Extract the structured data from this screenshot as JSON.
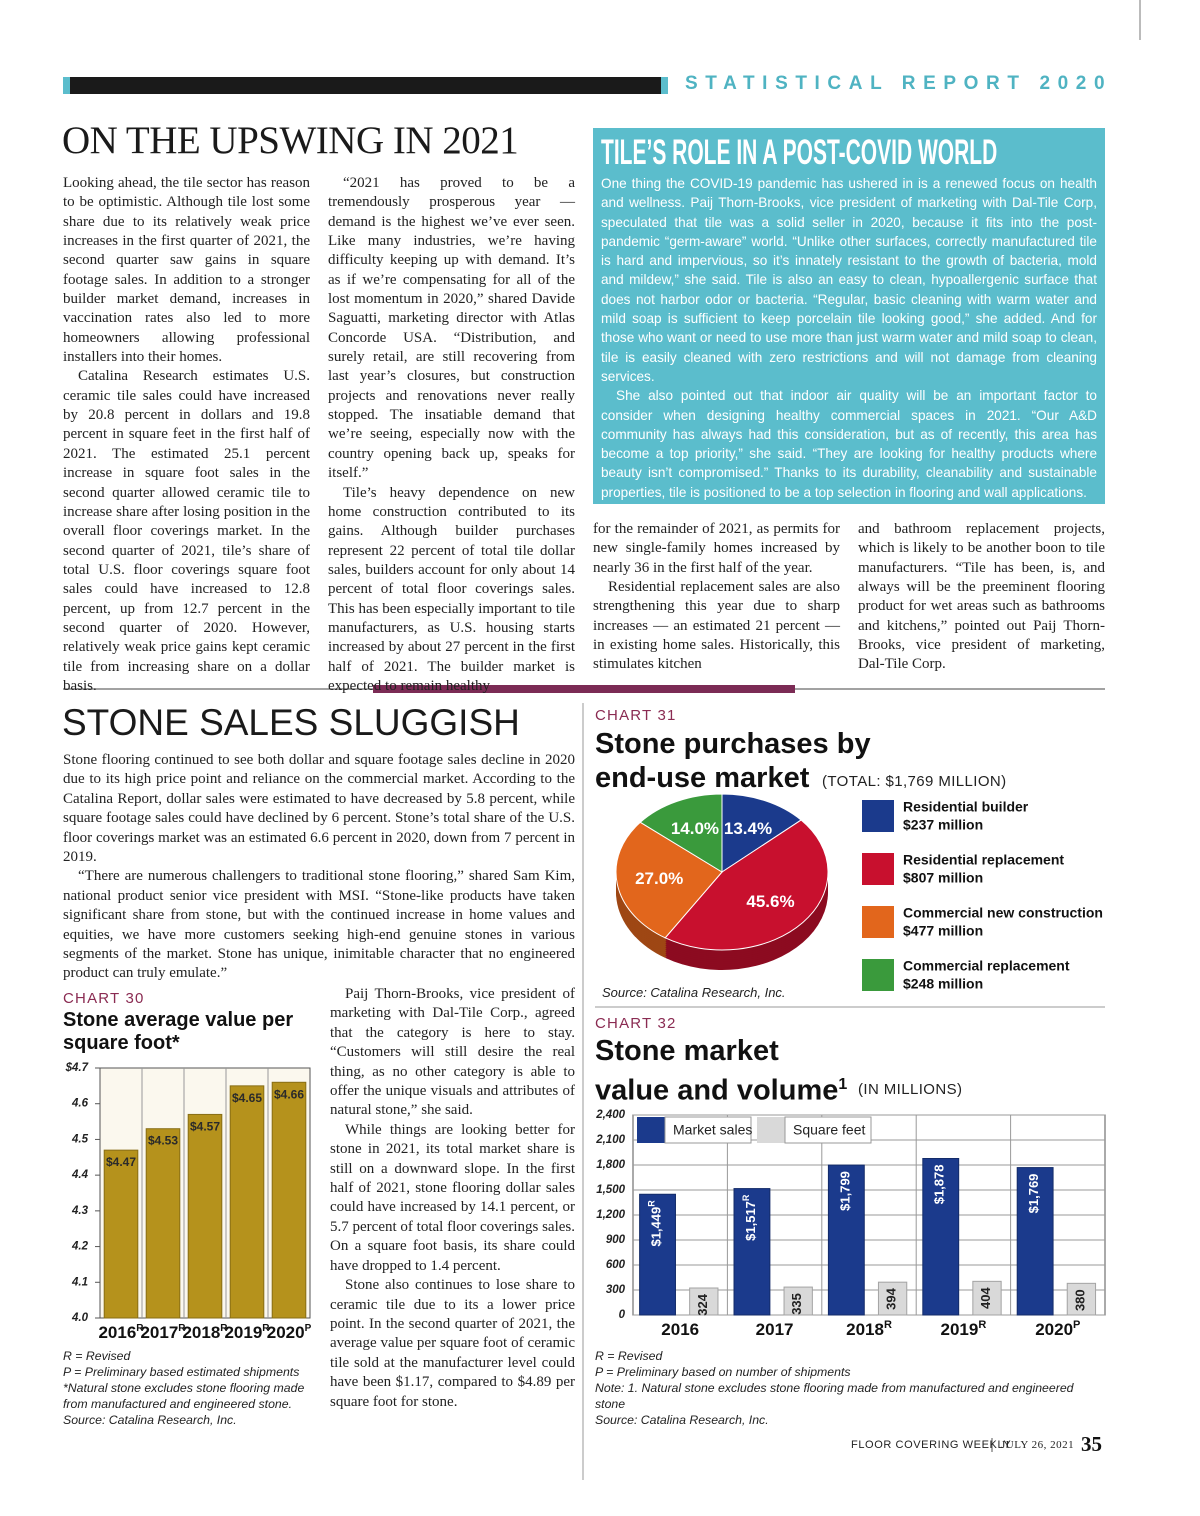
{
  "header": {
    "section": "STATISTICAL REPORT 2020"
  },
  "article1": {
    "title": "ON THE UPSWING IN 2021",
    "columns": [
      [
        "Looking ahead, the tile sector has reason to be optimistic. Although tile lost some share due to its relatively weak price increases in the first quarter of 2021, the second quarter saw gains in square footage sales. In addition to a stronger builder market demand, increases in vaccination rates also led to more homeowners allowing professional installers into their homes.",
        "Catalina Research estimates U.S. ceramic tile sales could have increased by 20.8 percent in dollars and 19.8 percent in square feet in the first half of 2021. The estimated 25.1 percent increase in square foot sales in the second quarter allowed ceramic tile to increase share after losing position in the overall floor coverings market. In the second quarter of 2021, tile’s share of total U.S. floor coverings square foot sales could have increased to 12.8 percent, up from 12.7 percent in the second quarter of 2020. However, relatively weak price gains kept ceramic tile from increasing share on a dollar basis."
      ],
      [
        "“2021 has proved to be a tremendously prosperous year — demand is the highest we’ve ever seen. Like many industries, we’re having difficulty keeping up with demand. It’s as if we’re compensating for all of the lost momentum in 2020,” shared Davide Saguatti, marketing director with Atlas Concorde USA. “Distribution, and surely retail, are still recovering from last year’s closures, but construction projects and renovations never really stopped. The insatiable demand that we’re seeing, especially now with the country opening back up, speaks for itself.”",
        "Tile’s heavy dependence on new home construction contributed to its gains. Although builder purchases represent 22 percent of total tile dollar sales, builders account for only about 14 percent of total floor coverings sales. This has been especially important to tile manufacturers, as U.S. housing starts increased by about 27 percent in the first half of 2021. The builder market is expected to remain healthy"
      ],
      [
        "for the remainder of 2021, as permits for new single-family homes increased by nearly 36 in the first half of the year.",
        "Residential replacement sales are also strengthening this year due to sharp increases — an estimated 21 percent — in existing home sales. Historically, this stimulates kitchen"
      ],
      [
        "and bathroom replacement projects, which is likely to be another boon to tile manufacturers. “Tile has been, is, and always will be the preeminent flooring product for wet areas such as bathrooms and kitchens,” pointed out Paij Thorn-Brooks, vice president of marketing, Dal-Tile Corp."
      ]
    ]
  },
  "sidebar": {
    "title": "TILE’S ROLE IN A POST-COVID WORLD",
    "paragraphs": [
      "One thing the COVID-19 pandemic has ushered in is a renewed focus on health and wellness. Paij Thorn-Brooks, vice president of marketing with Dal-Tile Corp, speculated that tile was a solid seller in 2020, because it fits into the post-pandemic “germ-aware” world. “Unlike other surfaces, correctly manufactured tile is hard and impervious, so it’s innately resistant to the growth of bacteria, mold and mildew,” she said. Tile is also an easy to clean, hypoallergenic surface that does not harbor odor or bacteria. “Regular, basic cleaning with warm water and mild soap is sufficient to keep porcelain tile looking good,” she added. And for those who want or need to use more than just warm water and mild soap to clean, tile is easily cleaned with zero restrictions and will not damage from cleaning services.",
      "She also pointed out that indoor air quality will be an important factor to consider when designing healthy commercial spaces in 2021. “Our A&D community has always had this consideration, but as of recently, this area has become a top priority,” she said. “They are looking for healthy products where beauty isn’t compromised.” Thanks to its durability, cleanability and sustainable properties, tile is positioned to be a top selection in flooring and wall applications."
    ]
  },
  "article2": {
    "title": "STONE SALES SLUGGISH",
    "paragraphs": [
      "Stone flooring continued to see both dollar and square footage sales decline in 2020 due to its high price point and reliance on the commercial market. According to the Catalina Report, dollar sales were estimated to have decreased by 5.8 percent, while square footage sales could have declined by 6 percent. Stone’s total share of the U.S. floor coverings market was an estimated 6.6 percent in 2020, down from 7 percent in 2019.",
      "“There are numerous challengers to traditional stone flooring,” shared Sam Kim, national product senior vice president with MSI. “Stone-like products have taken significant share from stone, but with the continued increase in home values and equities, we have more customers seeking high-end genuine stones in various segments of the market. Stone has unique, inimitable character that no engineered product can truly emulate.”",
      "Paij Thorn-Brooks, vice president of marketing with Dal-Tile Corp., agreed that the category is here to stay. “Customers will still desire the real thing, as no other category is able to offer the unique visuals and attributes of natural stone,” she said.",
      "While things are looking better for stone in 2021, its total market share is still on a downward slope. In the first half of 2021, stone flooring dollar sales could have increased by 14.1 percent, or 5.7 percent of total floor coverings sales. On a square foot basis, its share could have dropped to 1.4 percent.",
      "Stone also continues to lose share to ceramic tile due to its a lower price point. In the second quarter of 2021, the average value per square foot of ceramic tile sold at the manufacturer level could have been $1.17, compared to $4.89 per square foot for stone."
    ]
  },
  "chart_data": [
    {
      "type": "bar",
      "label": "CHART 30",
      "title": "Stone average value per square foot*",
      "categories": [
        "2016",
        "2017",
        "2018",
        "2019",
        "2020"
      ],
      "category_marks": [
        "R",
        "R",
        "R",
        "R",
        "P"
      ],
      "values": [
        4.47,
        4.53,
        4.57,
        4.65,
        4.66
      ],
      "value_labels": [
        "$4.47",
        "$4.53",
        "$4.57",
        "$4.65",
        "$4.66"
      ],
      "color": "#b5921c",
      "ylim": [
        4.0,
        4.7
      ],
      "yticks": [
        {
          "value": 4.0,
          "label": "4.0"
        },
        4.1,
        4.2,
        4.3,
        4.4,
        4.5,
        4.6,
        {
          "value": 4.7,
          "label": "$4.7"
        }
      ],
      "grid": "x",
      "notes": [
        "R = Revised",
        "P = Preliminary based estimated shipments",
        "*Natural stone excludes stone flooring made from manufactured and engineered stone.",
        "Source: Catalina Research, Inc."
      ]
    },
    {
      "type": "pie",
      "label": "CHART 31",
      "title": "Stone purchases by end-use market",
      "subtitle": "(TOTAL: $1,769 MILLION)",
      "categories": [
        "Residential builder",
        "Residential replacement",
        "Commercial new construction",
        "Commercial replacement"
      ],
      "amount_labels": [
        "$237 million",
        "$807 million",
        "$477 million",
        "$248 million"
      ],
      "values": [
        13.4,
        45.6,
        27.0,
        14.0
      ],
      "value_labels": [
        "13.4%",
        "45.6%",
        "27.0%",
        "14.0%"
      ],
      "colors": [
        "#1b3a8c",
        "#c8102e",
        "#e2661c",
        "#3a9a3c"
      ],
      "legend": "right",
      "notes": [
        "Source: Catalina Research, Inc."
      ]
    },
    {
      "type": "bar",
      "label": "CHART 32",
      "title": "Stone market value and volume",
      "title_note": "1",
      "subtitle": "(IN MILLIONS)",
      "categories": [
        "2016",
        "2017",
        "2018",
        "2019",
        "2020"
      ],
      "category_marks": [
        null,
        null,
        "R",
        "R",
        "P"
      ],
      "series": [
        {
          "name": "Market sales",
          "color": "#1b3a8c",
          "values": [
            1449,
            1517,
            1799,
            1878,
            1769
          ],
          "value_labels": [
            "$1,449",
            "$1,517",
            "$1,799",
            "$1,878",
            "$1,769"
          ],
          "value_marks": [
            "R",
            "R",
            null,
            null,
            null
          ]
        },
        {
          "name": "Square feet",
          "color": "#d9d9d9",
          "values": [
            324,
            335,
            394,
            404,
            380
          ]
        }
      ],
      "ylim": [
        0,
        2400
      ],
      "yticks": [
        0,
        300,
        600,
        900,
        {
          "value": 1200,
          "label": "1,200"
        },
        {
          "value": 1500,
          "label": "1,500"
        },
        {
          "value": 1800,
          "label": "1,800"
        },
        {
          "value": 2100,
          "label": "2,100"
        },
        {
          "value": 2400,
          "label": "2,400"
        }
      ],
      "grid": "both",
      "legend": "top-left",
      "notes": [
        "R = Revised",
        "P = Preliminary based on number of shipments",
        "Note: 1. Natural stone excludes stone flooring made from manufactured and engineered stone",
        "Source: Catalina Research, Inc."
      ]
    }
  ],
  "footer": {
    "publication": "FLOOR COVERING WEEKLY",
    "date": "JULY 26, 2021",
    "page": "35"
  }
}
